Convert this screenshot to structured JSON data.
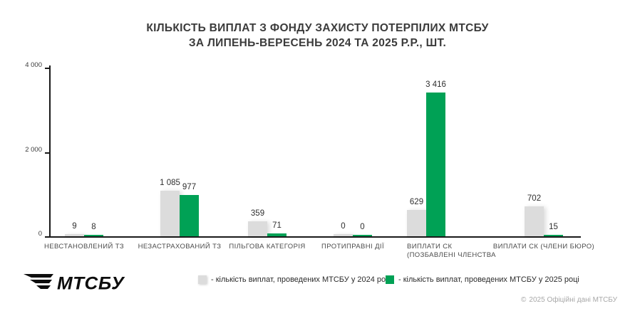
{
  "title": {
    "line1": "КІЛЬКІСТЬ ВИПЛАТ З ФОНДУ ЗАХИСТУ ПОТЕРПІЛИХ МТСБУ",
    "line2": "ЗА ЛИПЕНЬ-ВЕРЕСЕНЬ 2024 ТА 2025 Р.Р., ШТ."
  },
  "colors": {
    "bar_2024": "#dcdcdc",
    "bar_2025": "#00a155",
    "axis": "#1a1a1a",
    "title_text": "#3b3b3b",
    "footer_text": "#a8a8a8"
  },
  "chart_data": {
    "type": "bar",
    "categories": [
      [
        "НЕВСТАНОВЛЕНИЙ ТЗ"
      ],
      [
        "НЕЗАСТРАХОВАНИЙ ТЗ"
      ],
      [
        "ПІЛЬГОВА КАТЕГОРІЯ"
      ],
      [
        "ПРОТИПРАВНІ ДІЇ"
      ],
      [
        "ВИПЛАТИ СК",
        "(ПОЗБАВЛЕНІ ЧЛЕНСТВА"
      ],
      [
        "ВИПЛАТИ СК (ЧЛЕНИ БЮРО)"
      ]
    ],
    "series": [
      {
        "name": "кількість виплат, проведених МТСБУ у 2024 році",
        "color": "#dcdcdc",
        "values": [
          9,
          1085,
          359,
          0,
          629,
          702
        ],
        "value_labels": [
          "9",
          "1 085",
          "359",
          "0",
          "629",
          "702"
        ]
      },
      {
        "name": "кількість виплат, проведених МТСБУ у 2025 році",
        "color": "#00a155",
        "values": [
          8,
          977,
          71,
          0,
          3416,
          15
        ],
        "value_labels": [
          "8",
          "977",
          "71",
          "0",
          "3 416",
          "15"
        ]
      }
    ],
    "ylim": [
      0,
      4000
    ],
    "yticks": [
      {
        "value": 0,
        "label": "0"
      },
      {
        "value": 2000,
        "label": "2 000"
      },
      {
        "value": 4000,
        "label": "4 000"
      }
    ],
    "grid": false,
    "legend_position": "bottom"
  },
  "legend": {
    "items": [
      {
        "label": "- кількість виплат, проведених МТСБУ у 2024 році",
        "color": "#dcdcdc"
      },
      {
        "label": "- кількість виплат, проведених МТСБУ у 2025 році",
        "color": "#00a155"
      }
    ]
  },
  "logo": {
    "text": "МТСБУ"
  },
  "footer": {
    "icon": "©",
    "text": "2025 Офіційні дані МТСБУ"
  }
}
